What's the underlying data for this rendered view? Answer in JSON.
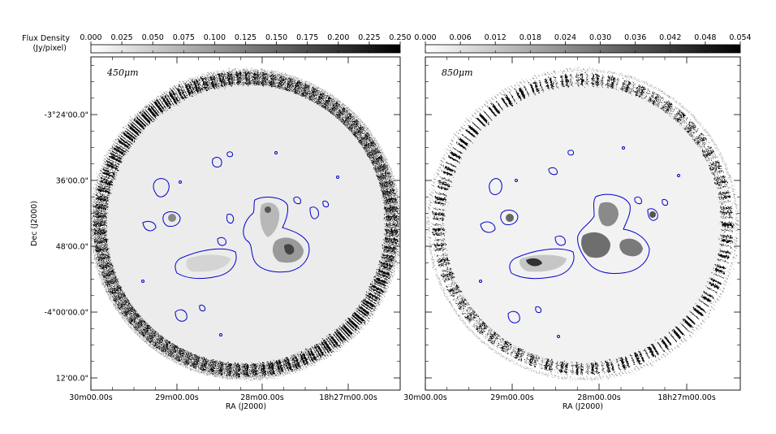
{
  "chart_data": [
    {
      "type": "heatmap",
      "panel_label": "450μm",
      "colorbar": {
        "label_line1": "Flux Density",
        "label_line2": "(Jy/pixel)",
        "ticks": [
          "0.000",
          "0.025",
          "0.050",
          "0.075",
          "0.100",
          "0.125",
          "0.150",
          "0.175",
          "0.200",
          "0.225",
          "0.250"
        ],
        "range": [
          0.0,
          0.25
        ],
        "colormap": "greys"
      },
      "xlabel": "RA (J2000)",
      "ylabel": "Dec (J2000)",
      "xticks": [
        "30m00.00s",
        "29m00.00s",
        "28m00.00s",
        "18h27m00.00s"
      ],
      "yticks": [
        "-3°24'00.0\"",
        "36'00.0\"",
        "48'00.0\"",
        "-4°00'00.0\"",
        "12'00.0\""
      ],
      "contour_color": "#0000cc"
    },
    {
      "type": "heatmap",
      "panel_label": "850μm",
      "colorbar": {
        "ticks": [
          "0.000",
          "0.006",
          "0.012",
          "0.018",
          "0.024",
          "0.030",
          "0.036",
          "0.042",
          "0.048",
          "0.054"
        ],
        "range": [
          0.0,
          0.054
        ],
        "colormap": "greys"
      },
      "xlabel": "RA (J2000)",
      "xticks": [
        "30m00.00s",
        "29m00.00s",
        "28m00.00s",
        "18h27m00.00s"
      ],
      "contour_color": "#0000cc"
    }
  ]
}
